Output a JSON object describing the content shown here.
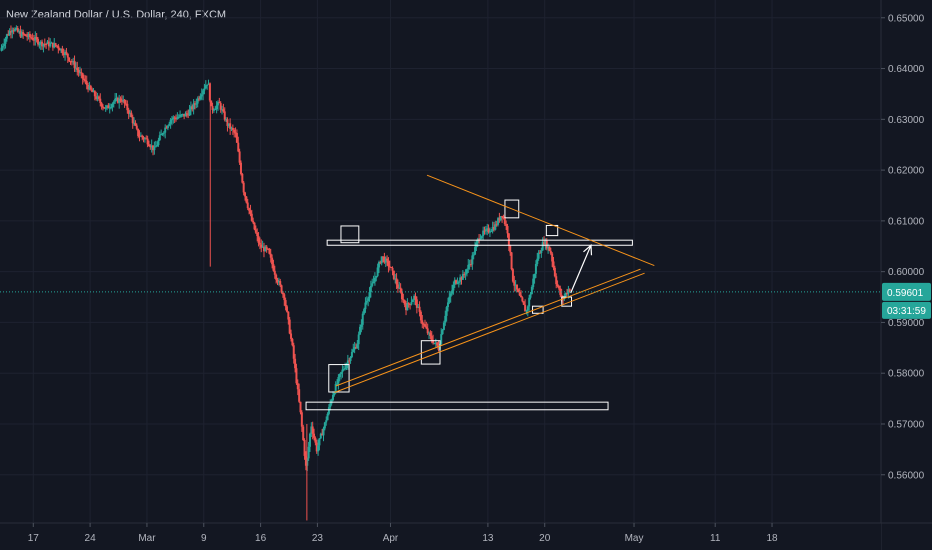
{
  "header": {
    "title": "New Zealand Dollar / U.S. Dollar, 240, FXCM"
  },
  "chart_data": {
    "type": "candlestick",
    "title": "New Zealand Dollar / U.S. Dollar, 240, FXCM",
    "y_ticks": [
      "0.65000",
      "0.64000",
      "0.63000",
      "0.62000",
      "0.61000",
      "0.60000",
      "0.59000",
      "0.58000",
      "0.57000",
      "0.56000"
    ],
    "y_tick_values": [
      0.65,
      0.64,
      0.63,
      0.62,
      0.61,
      0.6,
      0.59,
      0.58,
      0.57,
      0.56
    ],
    "ylim": [
      0.5505,
      0.6535
    ],
    "x_ticks": [
      "17",
      "24",
      "Mar",
      "9",
      "16",
      "23",
      "Apr",
      "13",
      "20",
      "May",
      "11",
      "18"
    ],
    "x_tick_days": [
      0,
      7,
      14,
      21,
      28,
      35,
      44,
      56,
      63,
      74,
      84,
      91
    ],
    "day_range": [
      -4.1,
      104.3
    ],
    "last_price": "0.59601",
    "last_price_value": 0.59601,
    "countdown": "03:31:59",
    "up_color": "#26a69a",
    "down_color": "#ef5350",
    "trendline_color": "#f7931a",
    "box_color": "#ffffff",
    "price_path": [
      [
        -4.0,
        0.6435
      ],
      [
        -3.2,
        0.6465
      ],
      [
        -2.5,
        0.648
      ],
      [
        -1.5,
        0.6468
      ],
      [
        0.0,
        0.646
      ],
      [
        1.0,
        0.645
      ],
      [
        2.0,
        0.6448
      ],
      [
        3.0,
        0.6445
      ],
      [
        4.0,
        0.643
      ],
      [
        5.0,
        0.641
      ],
      [
        6.0,
        0.6385
      ],
      [
        7.0,
        0.636
      ],
      [
        8.0,
        0.634
      ],
      [
        9.0,
        0.632
      ],
      [
        10.0,
        0.6335
      ],
      [
        11.0,
        0.634
      ],
      [
        12.0,
        0.631
      ],
      [
        13.0,
        0.627
      ],
      [
        14.0,
        0.626
      ],
      [
        15.0,
        0.624
      ],
      [
        16.0,
        0.6275
      ],
      [
        17.0,
        0.63
      ],
      [
        18.0,
        0.6305
      ],
      [
        19.0,
        0.631
      ],
      [
        20.0,
        0.633
      ],
      [
        21.0,
        0.636
      ],
      [
        21.6,
        0.6375
      ],
      [
        22.0,
        0.632
      ],
      [
        23.0,
        0.633
      ],
      [
        24.0,
        0.629
      ],
      [
        25.0,
        0.627
      ],
      [
        26.0,
        0.616
      ],
      [
        27.0,
        0.61
      ],
      [
        28.0,
        0.605
      ],
      [
        29.0,
        0.604
      ],
      [
        30.0,
        0.599
      ],
      [
        31.0,
        0.595
      ],
      [
        32.0,
        0.585
      ],
      [
        33.0,
        0.572
      ],
      [
        33.7,
        0.561
      ],
      [
        34.3,
        0.57
      ],
      [
        35.0,
        0.565
      ],
      [
        36.0,
        0.57
      ],
      [
        37.0,
        0.576
      ],
      [
        38.0,
        0.58
      ],
      [
        39.0,
        0.583
      ],
      [
        40.0,
        0.586
      ],
      [
        41.0,
        0.594
      ],
      [
        42.0,
        0.598
      ],
      [
        43.0,
        0.603
      ],
      [
        44.0,
        0.601
      ],
      [
        45.0,
        0.597
      ],
      [
        46.0,
        0.593
      ],
      [
        47.0,
        0.595
      ],
      [
        48.0,
        0.59
      ],
      [
        49.0,
        0.587
      ],
      [
        50.0,
        0.585
      ],
      [
        51.0,
        0.593
      ],
      [
        52.0,
        0.598
      ],
      [
        53.0,
        0.599
      ],
      [
        54.0,
        0.602
      ],
      [
        55.0,
        0.607
      ],
      [
        56.0,
        0.608
      ],
      [
        57.0,
        0.609
      ],
      [
        57.8,
        0.6115
      ],
      [
        58.5,
        0.608
      ],
      [
        59.2,
        0.598
      ],
      [
        60.0,
        0.595
      ],
      [
        60.8,
        0.592
      ],
      [
        61.5,
        0.597
      ],
      [
        62.2,
        0.603
      ],
      [
        63.0,
        0.606
      ],
      [
        63.8,
        0.604
      ],
      [
        64.5,
        0.598
      ],
      [
        65.2,
        0.5945
      ],
      [
        66.0,
        0.5965
      ]
    ],
    "spikes": [
      {
        "day": 21.8,
        "high": 0.6372,
        "low": 0.601
      },
      {
        "day": 33.7,
        "high": 0.57,
        "low": 0.551
      }
    ],
    "annotations": {
      "resistance_line": {
        "day1": 36.2,
        "day2": 73.8,
        "y_top": 0.6062,
        "y_bottom": 0.6052
      },
      "support_box": {
        "day1": 33.6,
        "day2": 70.8,
        "y_top": 0.5743,
        "y_bottom": 0.5728
      },
      "pattern_boxes": [
        {
          "day1": 37.9,
          "day2": 40.1,
          "y_top": 0.609,
          "y_bottom": 0.6057
        },
        {
          "day1": 58.1,
          "day2": 59.8,
          "y_top": 0.6141,
          "y_bottom": 0.6106
        },
        {
          "day1": 63.2,
          "day2": 64.6,
          "y_top": 0.6091,
          "y_bottom": 0.6071
        },
        {
          "day1": 61.5,
          "day2": 62.8,
          "y_top": 0.5932,
          "y_bottom": 0.5918
        },
        {
          "day1": 65.1,
          "day2": 66.3,
          "y_top": 0.595,
          "y_bottom": 0.5932
        },
        {
          "day1": 47.8,
          "day2": 50.1,
          "y_top": 0.5864,
          "y_bottom": 0.5818
        },
        {
          "day1": 36.4,
          "day2": 38.9,
          "y_top": 0.5817,
          "y_bottom": 0.5763
        }
      ],
      "upper_trendline": {
        "day1": 48.5,
        "y1": 0.619,
        "day2": 76.5,
        "y2": 0.6012
      },
      "lower_trendlines": [
        {
          "day1": 37.3,
          "y1": 0.5775,
          "day2": 74.8,
          "y2": 0.6005
        },
        {
          "day1": 37.1,
          "y1": 0.5762,
          "day2": 75.3,
          "y2": 0.5997
        }
      ],
      "arrow": {
        "day1": 66.2,
        "y1": 0.5958,
        "day2": 68.7,
        "y2": 0.6052
      }
    }
  }
}
